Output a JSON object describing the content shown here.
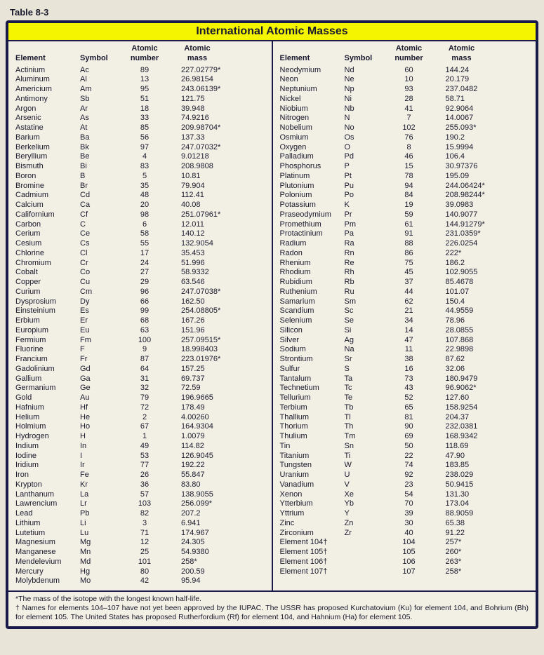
{
  "table_label": "Table 8-3",
  "title": "International Atomic Masses",
  "headers": {
    "element": "Element",
    "symbol": "Symbol",
    "number_l1": "Atomic",
    "number_l2": "number",
    "mass_l1": "Atomic",
    "mass_l2": "mass"
  },
  "left": [
    {
      "e": "Actinium",
      "s": "Ac",
      "n": "89",
      "m": "227.02779*"
    },
    {
      "e": "Aluminum",
      "s": "Al",
      "n": "13",
      "m": "26.98154"
    },
    {
      "e": "Americium",
      "s": "Am",
      "n": "95",
      "m": "243.06139*"
    },
    {
      "e": "Antimony",
      "s": "Sb",
      "n": "51",
      "m": "121.75"
    },
    {
      "e": "Argon",
      "s": "Ar",
      "n": "18",
      "m": "39.948"
    },
    {
      "e": "Arsenic",
      "s": "As",
      "n": "33",
      "m": "74.9216"
    },
    {
      "e": "Astatine",
      "s": "At",
      "n": "85",
      "m": "209.98704*"
    },
    {
      "e": "Barium",
      "s": "Ba",
      "n": "56",
      "m": "137.33"
    },
    {
      "e": "Berkelium",
      "s": "Bk",
      "n": "97",
      "m": "247.07032*"
    },
    {
      "e": "Beryllium",
      "s": "Be",
      "n": "4",
      "m": "9.01218"
    },
    {
      "e": "Bismuth",
      "s": "Bi",
      "n": "83",
      "m": "208.9808"
    },
    {
      "e": "Boron",
      "s": "B",
      "n": "5",
      "m": "10.81"
    },
    {
      "e": "Bromine",
      "s": "Br",
      "n": "35",
      "m": "79.904"
    },
    {
      "e": "Cadmium",
      "s": "Cd",
      "n": "48",
      "m": "112.41"
    },
    {
      "e": "Calcium",
      "s": "Ca",
      "n": "20",
      "m": "40.08"
    },
    {
      "e": "Californium",
      "s": "Cf",
      "n": "98",
      "m": "251.07961*"
    },
    {
      "e": "Carbon",
      "s": "C",
      "n": "6",
      "m": "12.011"
    },
    {
      "e": "Cerium",
      "s": "Ce",
      "n": "58",
      "m": "140.12"
    },
    {
      "e": "Cesium",
      "s": "Cs",
      "n": "55",
      "m": "132.9054"
    },
    {
      "e": "Chlorine",
      "s": "Cl",
      "n": "17",
      "m": "35.453"
    },
    {
      "e": "Chromium",
      "s": "Cr",
      "n": "24",
      "m": "51.996"
    },
    {
      "e": "Cobalt",
      "s": "Co",
      "n": "27",
      "m": "58.9332"
    },
    {
      "e": "Copper",
      "s": "Cu",
      "n": "29",
      "m": "63.546"
    },
    {
      "e": "Curium",
      "s": "Cm",
      "n": "96",
      "m": "247.07038*"
    },
    {
      "e": "Dysprosium",
      "s": "Dy",
      "n": "66",
      "m": "162.50"
    },
    {
      "e": "Einsteinium",
      "s": "Es",
      "n": "99",
      "m": "254.08805*"
    },
    {
      "e": "Erbium",
      "s": "Er",
      "n": "68",
      "m": "167.26"
    },
    {
      "e": "Europium",
      "s": "Eu",
      "n": "63",
      "m": "151.96"
    },
    {
      "e": "Fermium",
      "s": "Fm",
      "n": "100",
      "m": "257.09515*"
    },
    {
      "e": "Fluorine",
      "s": "F",
      "n": "9",
      "m": "18.998403"
    },
    {
      "e": "Francium",
      "s": "Fr",
      "n": "87",
      "m": "223.01976*"
    },
    {
      "e": "Gadolinium",
      "s": "Gd",
      "n": "64",
      "m": "157.25"
    },
    {
      "e": "Gallium",
      "s": "Ga",
      "n": "31",
      "m": "69.737"
    },
    {
      "e": "Germanium",
      "s": "Ge",
      "n": "32",
      "m": "72.59"
    },
    {
      "e": "Gold",
      "s": "Au",
      "n": "79",
      "m": "196.9665"
    },
    {
      "e": "Hafnium",
      "s": "Hf",
      "n": "72",
      "m": "178.49"
    },
    {
      "e": "Helium",
      "s": "He",
      "n": "2",
      "m": "4.00260"
    },
    {
      "e": "Holmium",
      "s": "Ho",
      "n": "67",
      "m": "164.9304"
    },
    {
      "e": "Hydrogen",
      "s": "H",
      "n": "1",
      "m": "1.0079"
    },
    {
      "e": "Indium",
      "s": "In",
      "n": "49",
      "m": "114.82"
    },
    {
      "e": "Iodine",
      "s": "I",
      "n": "53",
      "m": "126.9045"
    },
    {
      "e": "Iridium",
      "s": "Ir",
      "n": "77",
      "m": "192.22"
    },
    {
      "e": "Iron",
      "s": "Fe",
      "n": "26",
      "m": "55.847"
    },
    {
      "e": "Krypton",
      "s": "Kr",
      "n": "36",
      "m": "83.80"
    },
    {
      "e": "Lanthanum",
      "s": "La",
      "n": "57",
      "m": "138.9055"
    },
    {
      "e": "Lawrencium",
      "s": "Lr",
      "n": "103",
      "m": "256.099*"
    },
    {
      "e": "Lead",
      "s": "Pb",
      "n": "82",
      "m": "207.2"
    },
    {
      "e": "Lithium",
      "s": "Li",
      "n": "3",
      "m": "6.941"
    },
    {
      "e": "Lutetium",
      "s": "Lu",
      "n": "71",
      "m": "174.967"
    },
    {
      "e": "Magnesium",
      "s": "Mg",
      "n": "12",
      "m": "24.305"
    },
    {
      "e": "Manganese",
      "s": "Mn",
      "n": "25",
      "m": "54.9380"
    },
    {
      "e": "Mendelevium",
      "s": "Md",
      "n": "101",
      "m": "258*"
    },
    {
      "e": "Mercury",
      "s": "Hg",
      "n": "80",
      "m": "200.59"
    },
    {
      "e": "Molybdenum",
      "s": "Mo",
      "n": "42",
      "m": "95.94"
    }
  ],
  "right": [
    {
      "e": "Neodymium",
      "s": "Nd",
      "n": "60",
      "m": "144.24"
    },
    {
      "e": "Neon",
      "s": "Ne",
      "n": "10",
      "m": "20.179"
    },
    {
      "e": "Neptunium",
      "s": "Np",
      "n": "93",
      "m": "237.0482"
    },
    {
      "e": "Nickel",
      "s": "Ni",
      "n": "28",
      "m": "58.71"
    },
    {
      "e": "Niobium",
      "s": "Nb",
      "n": "41",
      "m": "92.9064"
    },
    {
      "e": "Nitrogen",
      "s": "N",
      "n": "7",
      "m": "14.0067"
    },
    {
      "e": "Nobelium",
      "s": "No",
      "n": "102",
      "m": "255.093*"
    },
    {
      "e": "Osmium",
      "s": "Os",
      "n": "76",
      "m": "190.2"
    },
    {
      "e": "Oxygen",
      "s": "O",
      "n": "8",
      "m": "15.9994"
    },
    {
      "e": "Palladium",
      "s": "Pd",
      "n": "46",
      "m": "106.4"
    },
    {
      "e": "Phosphorus",
      "s": "P",
      "n": "15",
      "m": "30.97376"
    },
    {
      "e": "Platinum",
      "s": "Pt",
      "n": "78",
      "m": "195.09"
    },
    {
      "e": "Plutonium",
      "s": "Pu",
      "n": "94",
      "m": "244.06424*"
    },
    {
      "e": "Polonium",
      "s": "Po",
      "n": "84",
      "m": "208.98244*"
    },
    {
      "e": "Potassium",
      "s": "K",
      "n": "19",
      "m": "39.0983"
    },
    {
      "e": "Praseodymium",
      "s": "Pr",
      "n": "59",
      "m": "140.9077"
    },
    {
      "e": "Promethium",
      "s": "Pm",
      "n": "61",
      "m": "144.91279*"
    },
    {
      "e": "Protactinium",
      "s": "Pa",
      "n": "91",
      "m": "231.0359*"
    },
    {
      "e": "Radium",
      "s": "Ra",
      "n": "88",
      "m": "226.0254"
    },
    {
      "e": "Radon",
      "s": "Rn",
      "n": "86",
      "m": "222*"
    },
    {
      "e": "Rhenium",
      "s": "Re",
      "n": "75",
      "m": "186.2"
    },
    {
      "e": "Rhodium",
      "s": "Rh",
      "n": "45",
      "m": "102.9055"
    },
    {
      "e": "Rubidium",
      "s": "Rb",
      "n": "37",
      "m": "85.4678"
    },
    {
      "e": "Ruthenium",
      "s": "Ru",
      "n": "44",
      "m": "101.07"
    },
    {
      "e": "Samarium",
      "s": "Sm",
      "n": "62",
      "m": "150.4"
    },
    {
      "e": "Scandium",
      "s": "Sc",
      "n": "21",
      "m": "44.9559"
    },
    {
      "e": "Selenium",
      "s": "Se",
      "n": "34",
      "m": "78.96"
    },
    {
      "e": "Silicon",
      "s": "Si",
      "n": "14",
      "m": "28.0855"
    },
    {
      "e": "Silver",
      "s": "Ag",
      "n": "47",
      "m": "107.868"
    },
    {
      "e": "Sodium",
      "s": "Na",
      "n": "11",
      "m": "22.9898"
    },
    {
      "e": "Strontium",
      "s": "Sr",
      "n": "38",
      "m": "87.62"
    },
    {
      "e": "Sulfur",
      "s": "S",
      "n": "16",
      "m": "32.06"
    },
    {
      "e": "Tantalum",
      "s": "Ta",
      "n": "73",
      "m": "180.9479"
    },
    {
      "e": "Technetium",
      "s": "Tc",
      "n": "43",
      "m": "96.9062*"
    },
    {
      "e": "Tellurium",
      "s": "Te",
      "n": "52",
      "m": "127.60"
    },
    {
      "e": "Terbium",
      "s": "Tb",
      "n": "65",
      "m": "158.9254"
    },
    {
      "e": "Thallium",
      "s": "Tl",
      "n": "81",
      "m": "204.37"
    },
    {
      "e": "Thorium",
      "s": "Th",
      "n": "90",
      "m": "232.0381"
    },
    {
      "e": "Thulium",
      "s": "Tm",
      "n": "69",
      "m": "168.9342"
    },
    {
      "e": "Tin",
      "s": "Sn",
      "n": "50",
      "m": "118.69"
    },
    {
      "e": "Titanium",
      "s": "Ti",
      "n": "22",
      "m": "47.90"
    },
    {
      "e": "Tungsten",
      "s": "W",
      "n": "74",
      "m": "183.85"
    },
    {
      "e": "Uranium",
      "s": "U",
      "n": "92",
      "m": "238.029"
    },
    {
      "e": "Vanadium",
      "s": "V",
      "n": "23",
      "m": "50.9415"
    },
    {
      "e": "Xenon",
      "s": "Xe",
      "n": "54",
      "m": "131.30"
    },
    {
      "e": "Ytterbium",
      "s": "Yb",
      "n": "70",
      "m": "173.04"
    },
    {
      "e": "Yttrium",
      "s": "Y",
      "n": "39",
      "m": "88.9059"
    },
    {
      "e": "Zinc",
      "s": "Zn",
      "n": "30",
      "m": "65.38"
    },
    {
      "e": "Zirconium",
      "s": "Zr",
      "n": "40",
      "m": "91.22"
    },
    {
      "e": "Element 104†",
      "s": "",
      "n": "104",
      "m": "257*"
    },
    {
      "e": "Element 105†",
      "s": "",
      "n": "105",
      "m": "260*"
    },
    {
      "e": "Element 106†",
      "s": "",
      "n": "106",
      "m": "263*"
    },
    {
      "e": "Element 107†",
      "s": "",
      "n": "107",
      "m": "258*"
    }
  ],
  "footnote1": "*The mass of the isotope with the longest known half-life.",
  "footnote2": "† Names for elements 104–107 have not yet been approved by the IUPAC. The USSR has proposed Kurchatovium (Ku) for element 104, and Bohrium (Bh) for element 105. The United States has proposed Rutherfordium (Rf) for element 104, and Hahnium (Ha) for element 105."
}
